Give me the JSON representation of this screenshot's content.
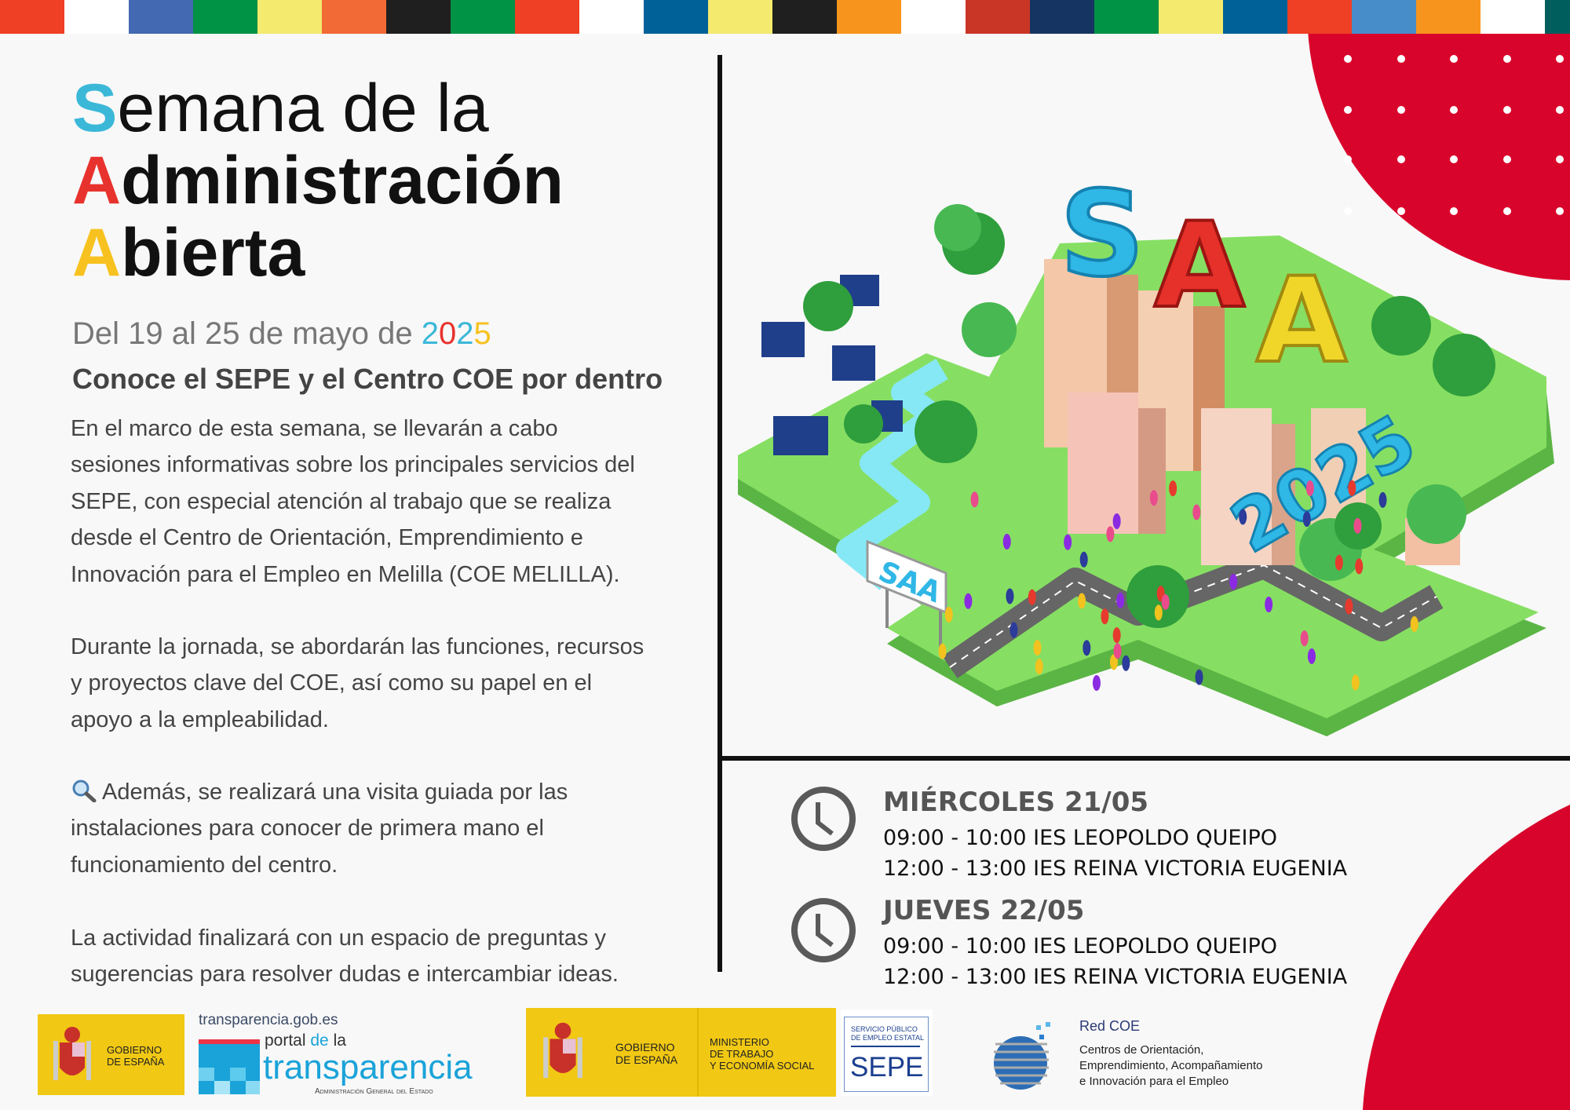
{
  "stripe_colors": [
    "#ef3f24",
    "#ffffff",
    "#4269b2",
    "#009245",
    "#f4ea6d",
    "#f26a36",
    "#1f1f1f",
    "#009245",
    "#ef3f24",
    "#ffffff",
    "#006199",
    "#f4ea6d",
    "#1f1f1f",
    "#f7941d",
    "#ffffff",
    "#c93626",
    "#163461",
    "#009245",
    "#f4ea6d",
    "#006199",
    "#ef3f24",
    "#478dca",
    "#f7941d",
    "#ffffff",
    "#005e5c"
  ],
  "colors": {
    "cyan": "#3bb8d8",
    "red": "#e8322d",
    "yellow": "#f7c21f",
    "accent_red": "#d9042b",
    "logo_yellow": "#f1c814"
  },
  "title": {
    "line1_initial": "S",
    "line1_rest": "emana de la",
    "line2_initial": "A",
    "line2_rest": "dministración",
    "line3_initial": "A",
    "line3_rest": "bierta"
  },
  "date": {
    "prefix": "Del 19 al 25 de mayo de ",
    "year_digits": [
      "2",
      "0",
      "2",
      "5"
    ]
  },
  "subtitle": "Conoce el SEPE y el Centro COE por dentro",
  "paragraphs": [
    {
      "lines": [
        "En el marco de esta semana, se llevarán a cabo",
        "sesiones informativas sobre los principales servicios del",
        "SEPE, con especial atención al trabajo que se realiza",
        "desde el Centro de Orientación, Emprendimiento e",
        "Innovación para el Empleo en Melilla (COE MELILLA)."
      ]
    },
    {
      "lines": [
        "Durante la jornada, se abordarán las funciones, recursos",
        "y proyectos clave del COE, así como su papel en el",
        "apoyo a la empleabilidad."
      ]
    },
    {
      "icon": "magnifier-icon",
      "lines": [
        "Además, se realizará una visita guiada por las",
        "instalaciones para conocer de primera mano el",
        "funcionamiento del centro."
      ]
    },
    {
      "lines": [
        "La actividad finalizará con un espacio de preguntas y",
        "sugerencias para resolver dudas e intercambiar ideas."
      ]
    }
  ],
  "illustration": {
    "letters": [
      "S",
      "A",
      "A"
    ],
    "year": "2025",
    "sign": "SAA"
  },
  "schedule": [
    {
      "day": "MIÉRCOLES 21/05",
      "icon": "clock-icon",
      "slots": [
        "09:00 - 10:00 IES LEOPOLDO QUEIPO",
        "12:00 - 13:00 IES REINA VICTORIA EUGENIA"
      ]
    },
    {
      "day": "JUEVES 22/05",
      "icon": "clock-icon",
      "slots": [
        "09:00 - 10:00 IES LEOPOLDO QUEIPO",
        "12:00 - 13:00 IES REINA VICTORIA EUGENIA"
      ]
    }
  ],
  "footer": {
    "gobierno": "GOBIERNO\nDE ESPAÑA",
    "transparencia_url": "transparencia.gob.es",
    "portal_a": "portal ",
    "portal_b": "de ",
    "portal_c": "la",
    "transparencia_word": "transparencia",
    "age": "Administración General del Estado",
    "gobierno2": "GOBIERNO\nDE ESPAÑA",
    "ministerio": "MINISTERIO\nDE TRABAJO\nY ECONOMÍA SOCIAL",
    "sepe_top": "SERVICIO PÚBLICO\nDE EMPLEO ESTATAL",
    "sepe": "SEPE",
    "redcoe_title": "Red COE",
    "redcoe_desc": [
      "Centros de Orientación,",
      "Emprendimiento, Acompañamiento",
      "e Innovación para el Empleo"
    ]
  }
}
